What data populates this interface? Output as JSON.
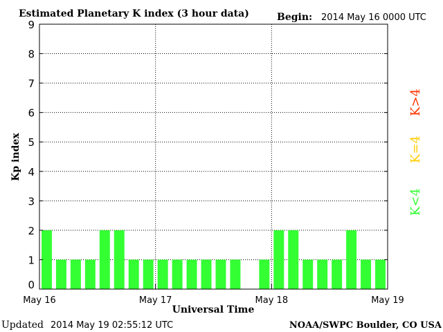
{
  "header": {
    "title": "Estimated Planetary K index (3 hour data)",
    "begin_label": "Begin:",
    "begin_value": "2014 May 16 0000 UTC"
  },
  "footer": {
    "updated_label": "Updated",
    "updated_value": "2014 May 19 02:55:12 UTC",
    "credit": "NOAA/SWPC Boulder, CO USA"
  },
  "legend": {
    "low": {
      "label": "K<4",
      "color": "#33ff33"
    },
    "mid": {
      "label": "K=4",
      "color": "#ffcc00"
    },
    "high": {
      "label": "K>4",
      "color": "#ff3300"
    }
  },
  "chart_data": {
    "type": "bar",
    "title": "Estimated Planetary K index (3 hour data)",
    "xlabel": "Universal Time",
    "ylabel": "Kp index",
    "ylim": [
      0,
      9
    ],
    "yticks": [
      0,
      1,
      2,
      3,
      4,
      5,
      6,
      7,
      8,
      9
    ],
    "xtick_labels": [
      "May 16",
      "May 17",
      "May 18",
      "May 19"
    ],
    "interval_hours": 3,
    "grid": true,
    "values": [
      2,
      1,
      1,
      1,
      2,
      2,
      1,
      1,
      1,
      1,
      1,
      1,
      1,
      1,
      null,
      1,
      2,
      2,
      1,
      1,
      1,
      2,
      1,
      1
    ],
    "bar_color": "#33ff33"
  }
}
